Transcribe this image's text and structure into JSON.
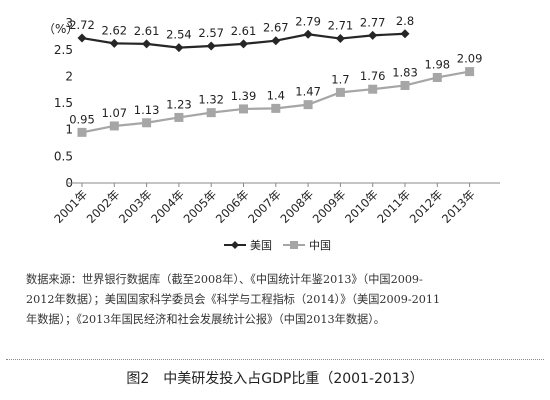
{
  "chart_data": {
    "type": "line",
    "categories": [
      "2001年",
      "2002年",
      "2003年",
      "2004年",
      "2005年",
      "2006年",
      "2007年",
      "2008年",
      "2009年",
      "2010年",
      "2011年",
      "2012年",
      "2013年"
    ],
    "series": [
      {
        "name": "美国",
        "values": [
          2.72,
          2.62,
          2.61,
          2.54,
          2.57,
          2.61,
          2.67,
          2.79,
          2.71,
          2.77,
          2.8,
          null,
          null
        ],
        "labels": [
          "2.72",
          "2.62",
          "2.61",
          "2.54",
          "2.57",
          "2.61",
          "2.67",
          "2.79",
          "2.71",
          "2.77",
          "2.8",
          "",
          ""
        ],
        "color": "#262626",
        "marker": "diamond"
      },
      {
        "name": "中国",
        "values": [
          0.95,
          1.07,
          1.13,
          1.23,
          1.32,
          1.39,
          1.4,
          1.47,
          1.7,
          1.76,
          1.83,
          1.98,
          2.09
        ],
        "labels": [
          "0.95",
          "1.07",
          "1.13",
          "1.23",
          "1.32",
          "1.39",
          "1.4",
          "1.47",
          "1.7",
          "1.76",
          "1.83",
          "1.98",
          "2.09"
        ],
        "color": "#a6a6a6",
        "marker": "square"
      }
    ],
    "ylabel": "（%）",
    "ylim": [
      0,
      3
    ],
    "yticks": [
      "0",
      "0.5",
      "1",
      "1.5",
      "2",
      "2.5",
      "3"
    ],
    "legend_position": "bottom",
    "grid": false
  },
  "source_note": {
    "lines": [
      "数据来源：世界银行数据库（截至2008年）、《中国统计年鉴2013》（中国2009-",
      "2012年数据）；美国国家科学委员会《科学与工程指标（2014）》（美国2009-2011",
      "年数据）；《2013年国民经济和社会发展统计公报》（中国2013年数据）。"
    ]
  },
  "caption": "图2　中美研发投入占GDP比重（2001-2013）"
}
